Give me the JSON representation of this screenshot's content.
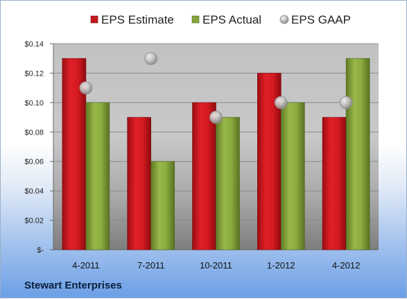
{
  "chart_data": {
    "type": "bar",
    "categories": [
      "4-2011",
      "7-2011",
      "10-2011",
      "1-2012",
      "4-2012"
    ],
    "series": [
      {
        "name": "EPS Estimate",
        "kind": "bar",
        "values": [
          0.13,
          0.09,
          0.1,
          0.12,
          0.09
        ]
      },
      {
        "name": "EPS Actual",
        "kind": "bar",
        "values": [
          0.1,
          0.06,
          0.09,
          0.1,
          0.13
        ]
      },
      {
        "name": "EPS GAAP",
        "kind": "marker",
        "values": [
          0.11,
          0.13,
          0.09,
          0.1,
          0.1
        ]
      }
    ],
    "ylim": [
      0,
      0.14
    ],
    "yticks": [
      0,
      0.02,
      0.04,
      0.06,
      0.08,
      0.1,
      0.12,
      0.14
    ],
    "ytick_labels": [
      "$-",
      "$0.02",
      "$0.04",
      "$0.06",
      "$0.08",
      "$0.10",
      "$0.12",
      "$0.14"
    ],
    "grid": true,
    "legend_position": "top",
    "colors": {
      "estimate": "#c8161d",
      "actual": "#7f9f37",
      "gaap": "#bfbfbf"
    }
  },
  "footer": {
    "company": "Stewart Enterprises"
  }
}
